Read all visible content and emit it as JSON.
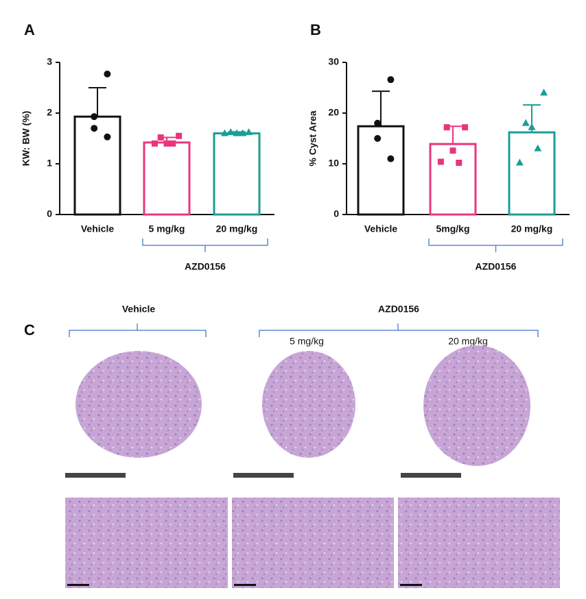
{
  "chart_data": [
    {
      "type": "bar",
      "panel": "A",
      "ylabel": "KW: BW (%)",
      "categories": [
        "Vehicle",
        "5 mg/kg",
        "20 mg/kg"
      ],
      "values": [
        1.93,
        1.42,
        1.6
      ],
      "errors": [
        0.57,
        0.1,
        0.03
      ],
      "points": [
        [
          2.77,
          1.93,
          1.7,
          1.53
        ],
        [
          1.55,
          1.52,
          1.4,
          1.4,
          1.4
        ],
        [
          1.62,
          1.62,
          1.6,
          1.6,
          1.6
        ]
      ],
      "colors": [
        "#111111",
        "#e8357e",
        "#1a9e96"
      ],
      "markers": [
        "circle",
        "square",
        "triangle"
      ],
      "ylim": [
        0,
        3
      ],
      "yticks": [
        0,
        1,
        2,
        3
      ],
      "group_label": "AZD0156"
    },
    {
      "type": "bar",
      "panel": "B",
      "ylabel": "% Cyst Area",
      "categories": [
        "Vehicle",
        "5mg/kg",
        "20 mg/kg"
      ],
      "values": [
        17.4,
        13.9,
        16.2
      ],
      "errors": [
        6.9,
        3.5,
        5.4
      ],
      "points": [
        [
          26.6,
          18,
          15,
          11
        ],
        [
          17.2,
          17.2,
          12.6,
          10.2,
          10.4
        ],
        [
          24,
          18,
          17.2,
          13,
          10.2
        ]
      ],
      "colors": [
        "#111111",
        "#e8357e",
        "#1a9e96"
      ],
      "markers": [
        "circle",
        "square",
        "triangle"
      ],
      "ylim": [
        0,
        30
      ],
      "yticks": [
        0,
        10,
        20,
        30
      ],
      "group_label": "AZD0156"
    }
  ],
  "figure_c": {
    "panel": "C",
    "vehicle": "Vehicle",
    "treatment": "AZD0156",
    "doses": [
      "5 mg/kg",
      "20 mg/kg"
    ]
  }
}
